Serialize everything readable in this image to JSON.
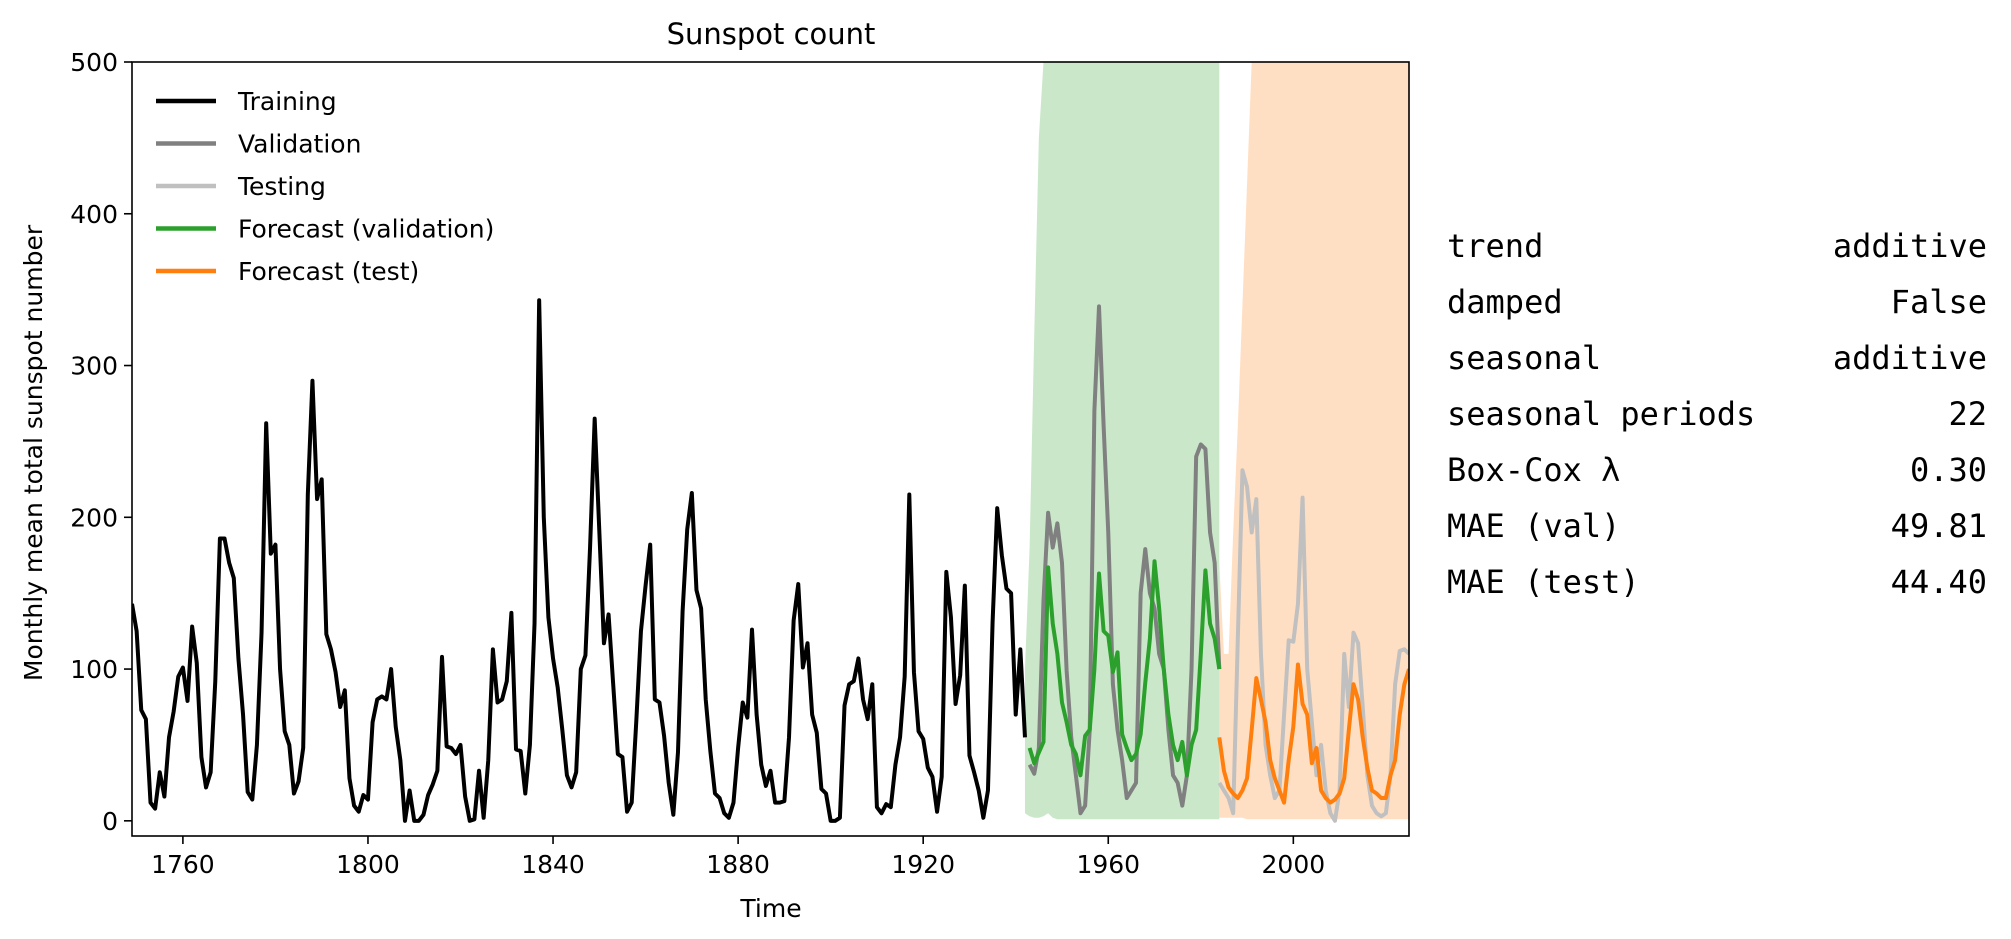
{
  "chart_data": {
    "type": "line",
    "title": "Sunspot count",
    "xlabel": "Time",
    "ylabel": "Monthly mean total sunspot number",
    "xlim": [
      1749,
      2025
    ],
    "ylim": [
      -10,
      500
    ],
    "x_ticks": [
      1760,
      1800,
      1840,
      1880,
      1920,
      1960,
      2000
    ],
    "y_ticks": [
      0,
      100,
      200,
      300,
      400,
      500
    ],
    "legend_position": "top-left",
    "grid": false,
    "legend": [
      {
        "label": "Training",
        "color": "#000000"
      },
      {
        "label": "Validation",
        "color": "#808080"
      },
      {
        "label": "Testing",
        "color": "#c0c0c0"
      },
      {
        "label": "Forecast (validation)",
        "color": "#2ca02c"
      },
      {
        "label": "Forecast (test)",
        "color": "#ff7f0e"
      }
    ],
    "series": [
      {
        "name": "Training",
        "color": "#000000",
        "x": [
          1749,
          1750,
          1751,
          1752,
          1753,
          1754,
          1755,
          1756,
          1757,
          1758,
          1759,
          1760,
          1761,
          1762,
          1763,
          1764,
          1765,
          1766,
          1767,
          1768,
          1769,
          1770,
          1771,
          1772,
          1773,
          1774,
          1775,
          1776,
          1777,
          1778,
          1779,
          1780,
          1781,
          1782,
          1783,
          1784,
          1785,
          1786,
          1787,
          1788,
          1789,
          1790,
          1791,
          1792,
          1793,
          1794,
          1795,
          1796,
          1797,
          1798,
          1799,
          1800,
          1801,
          1802,
          1803,
          1804,
          1805,
          1806,
          1807,
          1808,
          1809,
          1810,
          1811,
          1812,
          1813,
          1814,
          1815,
          1816,
          1817,
          1818,
          1819,
          1820,
          1821,
          1822,
          1823,
          1824,
          1825,
          1826,
          1827,
          1828,
          1829,
          1830,
          1831,
          1832,
          1833,
          1834,
          1835,
          1836,
          1837,
          1838,
          1839,
          1840,
          1841,
          1842,
          1843,
          1844,
          1845,
          1846,
          1847,
          1848,
          1849,
          1850,
          1851,
          1852,
          1853,
          1854,
          1855,
          1856,
          1857,
          1858,
          1859,
          1860,
          1861,
          1862,
          1863,
          1864,
          1865,
          1866,
          1867,
          1868,
          1869,
          1870,
          1871,
          1872,
          1873,
          1874,
          1875,
          1876,
          1877,
          1878,
          1879,
          1880,
          1881,
          1882,
          1883,
          1884,
          1885,
          1886,
          1887,
          1888,
          1889,
          1890,
          1891,
          1892,
          1893,
          1894,
          1895,
          1896,
          1897,
          1898,
          1899,
          1900,
          1901,
          1902,
          1903,
          1904,
          1905,
          1906,
          1907,
          1908,
          1909,
          1910,
          1911,
          1912,
          1913,
          1914,
          1915,
          1916,
          1917,
          1918,
          1919,
          1920,
          1921,
          1922,
          1923,
          1924,
          1925,
          1926,
          1927,
          1928,
          1929,
          1930,
          1931,
          1932,
          1933,
          1934,
          1935,
          1936,
          1937,
          1938,
          1939,
          1940,
          1941,
          1942
        ],
        "values": [
          143,
          125,
          73,
          67,
          12,
          8,
          32,
          16,
          55,
          72,
          95,
          101,
          79,
          128,
          104,
          42,
          22,
          32,
          92,
          186,
          186,
          170,
          160,
          107,
          70,
          19,
          14,
          50,
          124,
          262,
          176,
          182,
          100,
          59,
          50,
          18,
          26,
          48,
          215,
          290,
          212,
          225,
          123,
          113,
          98,
          75,
          86,
          28,
          10,
          6,
          17,
          14,
          65,
          80,
          82,
          80,
          100,
          62,
          40,
          0,
          20,
          0,
          0,
          4,
          17,
          24,
          33,
          108,
          49,
          48,
          44,
          50,
          16,
          0,
          1,
          33,
          2,
          40,
          113,
          78,
          80,
          92,
          137,
          47,
          46,
          18,
          50,
          130,
          343,
          200,
          134,
          107,
          88,
          60,
          30,
          22,
          32,
          100,
          109,
          180,
          265,
          191,
          117,
          136,
          90,
          44,
          42,
          6,
          12,
          66,
          125,
          155,
          182,
          80,
          78,
          56,
          25,
          4,
          45,
          138,
          192,
          216,
          152,
          140,
          80,
          46,
          18,
          15,
          5,
          2,
          12,
          48,
          78,
          68,
          126,
          70,
          37,
          23,
          33,
          12,
          12,
          13,
          55,
          132,
          156,
          101,
          117,
          70,
          58,
          21,
          18,
          0,
          0,
          2,
          76,
          90,
          92,
          107,
          80,
          67,
          90,
          9,
          5,
          11,
          9,
          37,
          55,
          95,
          215,
          98,
          59,
          54,
          35,
          29,
          6,
          29,
          164,
          134,
          77,
          96,
          155,
          43,
          32,
          20,
          2,
          20,
          131,
          206,
          175,
          153,
          150,
          70,
          113,
          55
        ]
      },
      {
        "name": "Validation",
        "color": "#808080",
        "x": [
          1943,
          1944,
          1945,
          1946,
          1947,
          1948,
          1949,
          1950,
          1951,
          1952,
          1953,
          1954,
          1955,
          1956,
          1957,
          1958,
          1959,
          1960,
          1961,
          1962,
          1963,
          1964,
          1965,
          1966,
          1967,
          1968,
          1969,
          1970,
          1971,
          1972,
          1973,
          1974,
          1975,
          1976,
          1977,
          1978,
          1979,
          1980,
          1981,
          1982,
          1983,
          1984
        ],
        "values": [
          37,
          31,
          48,
          145,
          203,
          180,
          196,
          170,
          99,
          55,
          30,
          5,
          10,
          60,
          270,
          339,
          260,
          190,
          90,
          60,
          40,
          15,
          20,
          25,
          150,
          179,
          150,
          140,
          110,
          100,
          60,
          30,
          25,
          10,
          30,
          100,
          240,
          248,
          245,
          190,
          170,
          100
        ]
      },
      {
        "name": "Testing",
        "color": "#c0c0c0",
        "x": [
          1984,
          1985,
          1986,
          1987,
          1988,
          1989,
          1990,
          1991,
          1992,
          1993,
          1994,
          1995,
          1996,
          1997,
          1998,
          1999,
          2000,
          2001,
          2002,
          2003,
          2004,
          2005,
          2006,
          2007,
          2008,
          2009,
          2010,
          2011,
          2012,
          2013,
          2014,
          2015,
          2016,
          2017,
          2018,
          2019,
          2020,
          2021,
          2022,
          2023,
          2024,
          2025
        ],
        "values": [
          25,
          20,
          15,
          5,
          120,
          231,
          220,
          190,
          212,
          110,
          50,
          30,
          15,
          20,
          70,
          119,
          118,
          143,
          213,
          100,
          65,
          30,
          50,
          20,
          5,
          0,
          20,
          110,
          75,
          124,
          117,
          75,
          30,
          10,
          5,
          3,
          5,
          30,
          90,
          112,
          113,
          110
        ]
      },
      {
        "name": "Forecast (validation)",
        "color": "#2ca02c",
        "x": [
          1943,
          1944,
          1945,
          1946,
          1947,
          1948,
          1949,
          1950,
          1951,
          1952,
          1953,
          1954,
          1955,
          1956,
          1957,
          1958,
          1959,
          1960,
          1961,
          1962,
          1963,
          1964,
          1965,
          1966,
          1967,
          1968,
          1969,
          1970,
          1971,
          1972,
          1973,
          1974,
          1975,
          1976,
          1977,
          1978,
          1979,
          1980,
          1981,
          1982,
          1983,
          1984
        ],
        "values": [
          48,
          38,
          45,
          52,
          167,
          130,
          110,
          78,
          65,
          50,
          44,
          30,
          56,
          60,
          100,
          163,
          125,
          122,
          98,
          111,
          57,
          48,
          40,
          44,
          57,
          91,
          120,
          171,
          140,
          100,
          70,
          50,
          40,
          52,
          30,
          50,
          60,
          110,
          165,
          130,
          120,
          100
        ]
      },
      {
        "name": "Forecast (test)",
        "color": "#ff7f0e",
        "x": [
          1984,
          1985,
          1986,
          1987,
          1988,
          1989,
          1990,
          1991,
          1992,
          1993,
          1994,
          1995,
          1996,
          1997,
          1998,
          1999,
          2000,
          2001,
          2002,
          2003,
          2004,
          2005,
          2006,
          2007,
          2008,
          2009,
          2010,
          2011,
          2012,
          2013,
          2014,
          2015,
          2016,
          2017,
          2018,
          2019,
          2020,
          2021,
          2022,
          2023,
          2024,
          2025
        ],
        "values": [
          55,
          33,
          22,
          18,
          15,
          20,
          28,
          60,
          94,
          80,
          65,
          40,
          28,
          20,
          12,
          40,
          62,
          103,
          77,
          70,
          38,
          48,
          20,
          15,
          12,
          14,
          18,
          28,
          60,
          90,
          80,
          55,
          35,
          20,
          18,
          15,
          15,
          30,
          40,
          70,
          90,
          100
        ]
      }
    ],
    "bands": [
      {
        "name": "Forecast (validation) interval",
        "color": "#2ca02c",
        "x": [
          1942,
          1943,
          1944,
          1945,
          1946,
          1947,
          1948,
          1949,
          1950,
          1960,
          1970,
          1980,
          1984
        ],
        "lower": [
          5,
          3,
          2,
          2,
          3,
          5,
          2,
          1,
          1,
          1,
          1,
          1,
          1
        ],
        "upper": [
          100,
          180,
          320,
          450,
          500,
          500,
          500,
          500,
          500,
          500,
          500,
          500,
          500
        ]
      },
      {
        "name": "Forecast (test) interval",
        "color": "#ff7f0e",
        "x": [
          1984,
          1985,
          1986,
          1987,
          1988,
          1989,
          1990,
          1991,
          1992,
          2000,
          2010,
          2020,
          2025
        ],
        "lower": [
          2,
          2,
          2,
          2,
          2,
          2,
          1,
          1,
          1,
          1,
          1,
          1,
          1
        ],
        "upper": [
          170,
          110,
          110,
          190,
          260,
          340,
          420,
          500,
          500,
          500,
          500,
          500,
          500
        ]
      }
    ]
  },
  "stats": [
    {
      "key": "trend",
      "value": "additive"
    },
    {
      "key": "damped",
      "value": "False"
    },
    {
      "key": "seasonal",
      "value": "additive"
    },
    {
      "key": "seasonal periods",
      "value": "22"
    },
    {
      "key": "Box-Cox λ",
      "value": "0.30"
    },
    {
      "key": "MAE (val)",
      "value": "49.81"
    },
    {
      "key": "MAE (test)",
      "value": "44.40"
    }
  ]
}
